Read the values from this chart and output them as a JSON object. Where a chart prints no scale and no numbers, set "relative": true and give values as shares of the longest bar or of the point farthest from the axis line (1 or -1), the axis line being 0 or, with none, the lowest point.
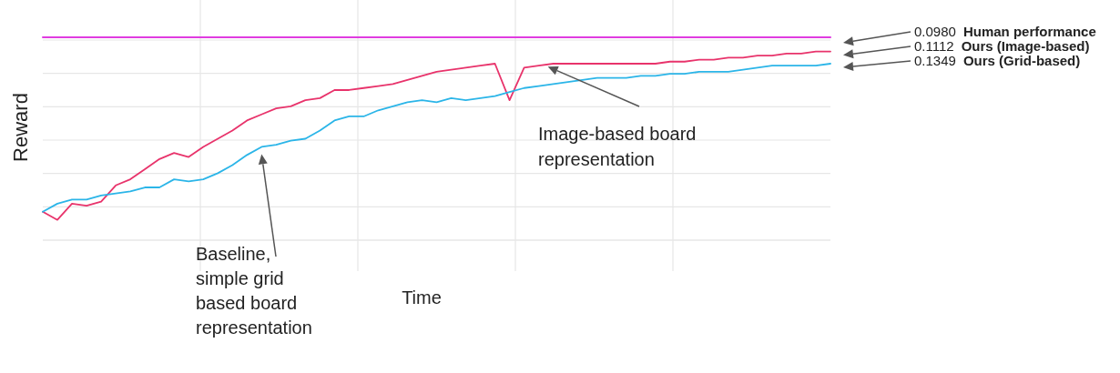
{
  "chart_data": {
    "type": "line",
    "relative": true,
    "xlabel": "Time",
    "ylabel": "Reward",
    "grid": true,
    "legend": "right",
    "line_style": "solid",
    "marker": "none",
    "categories": [
      null,
      null,
      null,
      null,
      null,
      null,
      null,
      null,
      null,
      null,
      null,
      null,
      null,
      null,
      null,
      null,
      null,
      null,
      null,
      null,
      null,
      null,
      null,
      null,
      null,
      null,
      null,
      null,
      null,
      null,
      null,
      null,
      null,
      null,
      null,
      null,
      null,
      null,
      null,
      null,
      null,
      null,
      null,
      null,
      null,
      null,
      null,
      null,
      null,
      null,
      null,
      null,
      null,
      null,
      null
    ],
    "series": [
      {
        "name": "Human performance",
        "color": "#e03ce0",
        "values": [
          1,
          1,
          1,
          1,
          1,
          1,
          1,
          1,
          1,
          1,
          1,
          1,
          1,
          1,
          1,
          1,
          1,
          1,
          1,
          1,
          1,
          1,
          1,
          1,
          1,
          1,
          1,
          1,
          1,
          1,
          1,
          1,
          1,
          1,
          1,
          1,
          1,
          1,
          1,
          1,
          1,
          1,
          1,
          1,
          1,
          1,
          1,
          1,
          1,
          1,
          1,
          1,
          1,
          1,
          1
        ]
      },
      {
        "name": "Ours (Image-based)",
        "color": "#e8336b",
        "values": [
          0.14,
          0.1,
          0.18,
          0.17,
          0.19,
          0.27,
          0.3,
          0.35,
          0.4,
          0.43,
          0.41,
          0.46,
          0.5,
          0.54,
          0.59,
          0.62,
          0.65,
          0.66,
          0.69,
          0.7,
          0.74,
          0.74,
          0.75,
          0.76,
          0.77,
          0.79,
          0.81,
          0.83,
          0.84,
          0.85,
          0.86,
          0.87,
          0.69,
          0.85,
          0.86,
          0.87,
          0.87,
          0.87,
          0.87,
          0.87,
          0.87,
          0.87,
          0.87,
          0.88,
          0.88,
          0.89,
          0.89,
          0.9,
          0.9,
          0.91,
          0.91,
          0.92,
          0.92,
          0.93,
          0.93
        ]
      },
      {
        "name": "Ours (Grid-based)",
        "color": "#2bb5e8",
        "values": [
          0.14,
          0.18,
          0.2,
          0.2,
          0.22,
          0.23,
          0.24,
          0.26,
          0.26,
          0.3,
          0.29,
          0.3,
          0.33,
          0.37,
          0.42,
          0.46,
          0.47,
          0.49,
          0.5,
          0.54,
          0.59,
          0.61,
          0.61,
          0.64,
          0.66,
          0.68,
          0.69,
          0.68,
          0.7,
          0.69,
          0.7,
          0.71,
          0.73,
          0.75,
          0.76,
          0.77,
          0.78,
          0.79,
          0.8,
          0.8,
          0.8,
          0.81,
          0.81,
          0.82,
          0.82,
          0.83,
          0.83,
          0.83,
          0.84,
          0.85,
          0.86,
          0.86,
          0.86,
          0.86,
          0.87
        ]
      }
    ],
    "annotations": [
      "0.0980",
      "0.1112",
      "0.1349",
      "Image-based board representation",
      "Baseline, simple grid based board representation"
    ]
  }
}
